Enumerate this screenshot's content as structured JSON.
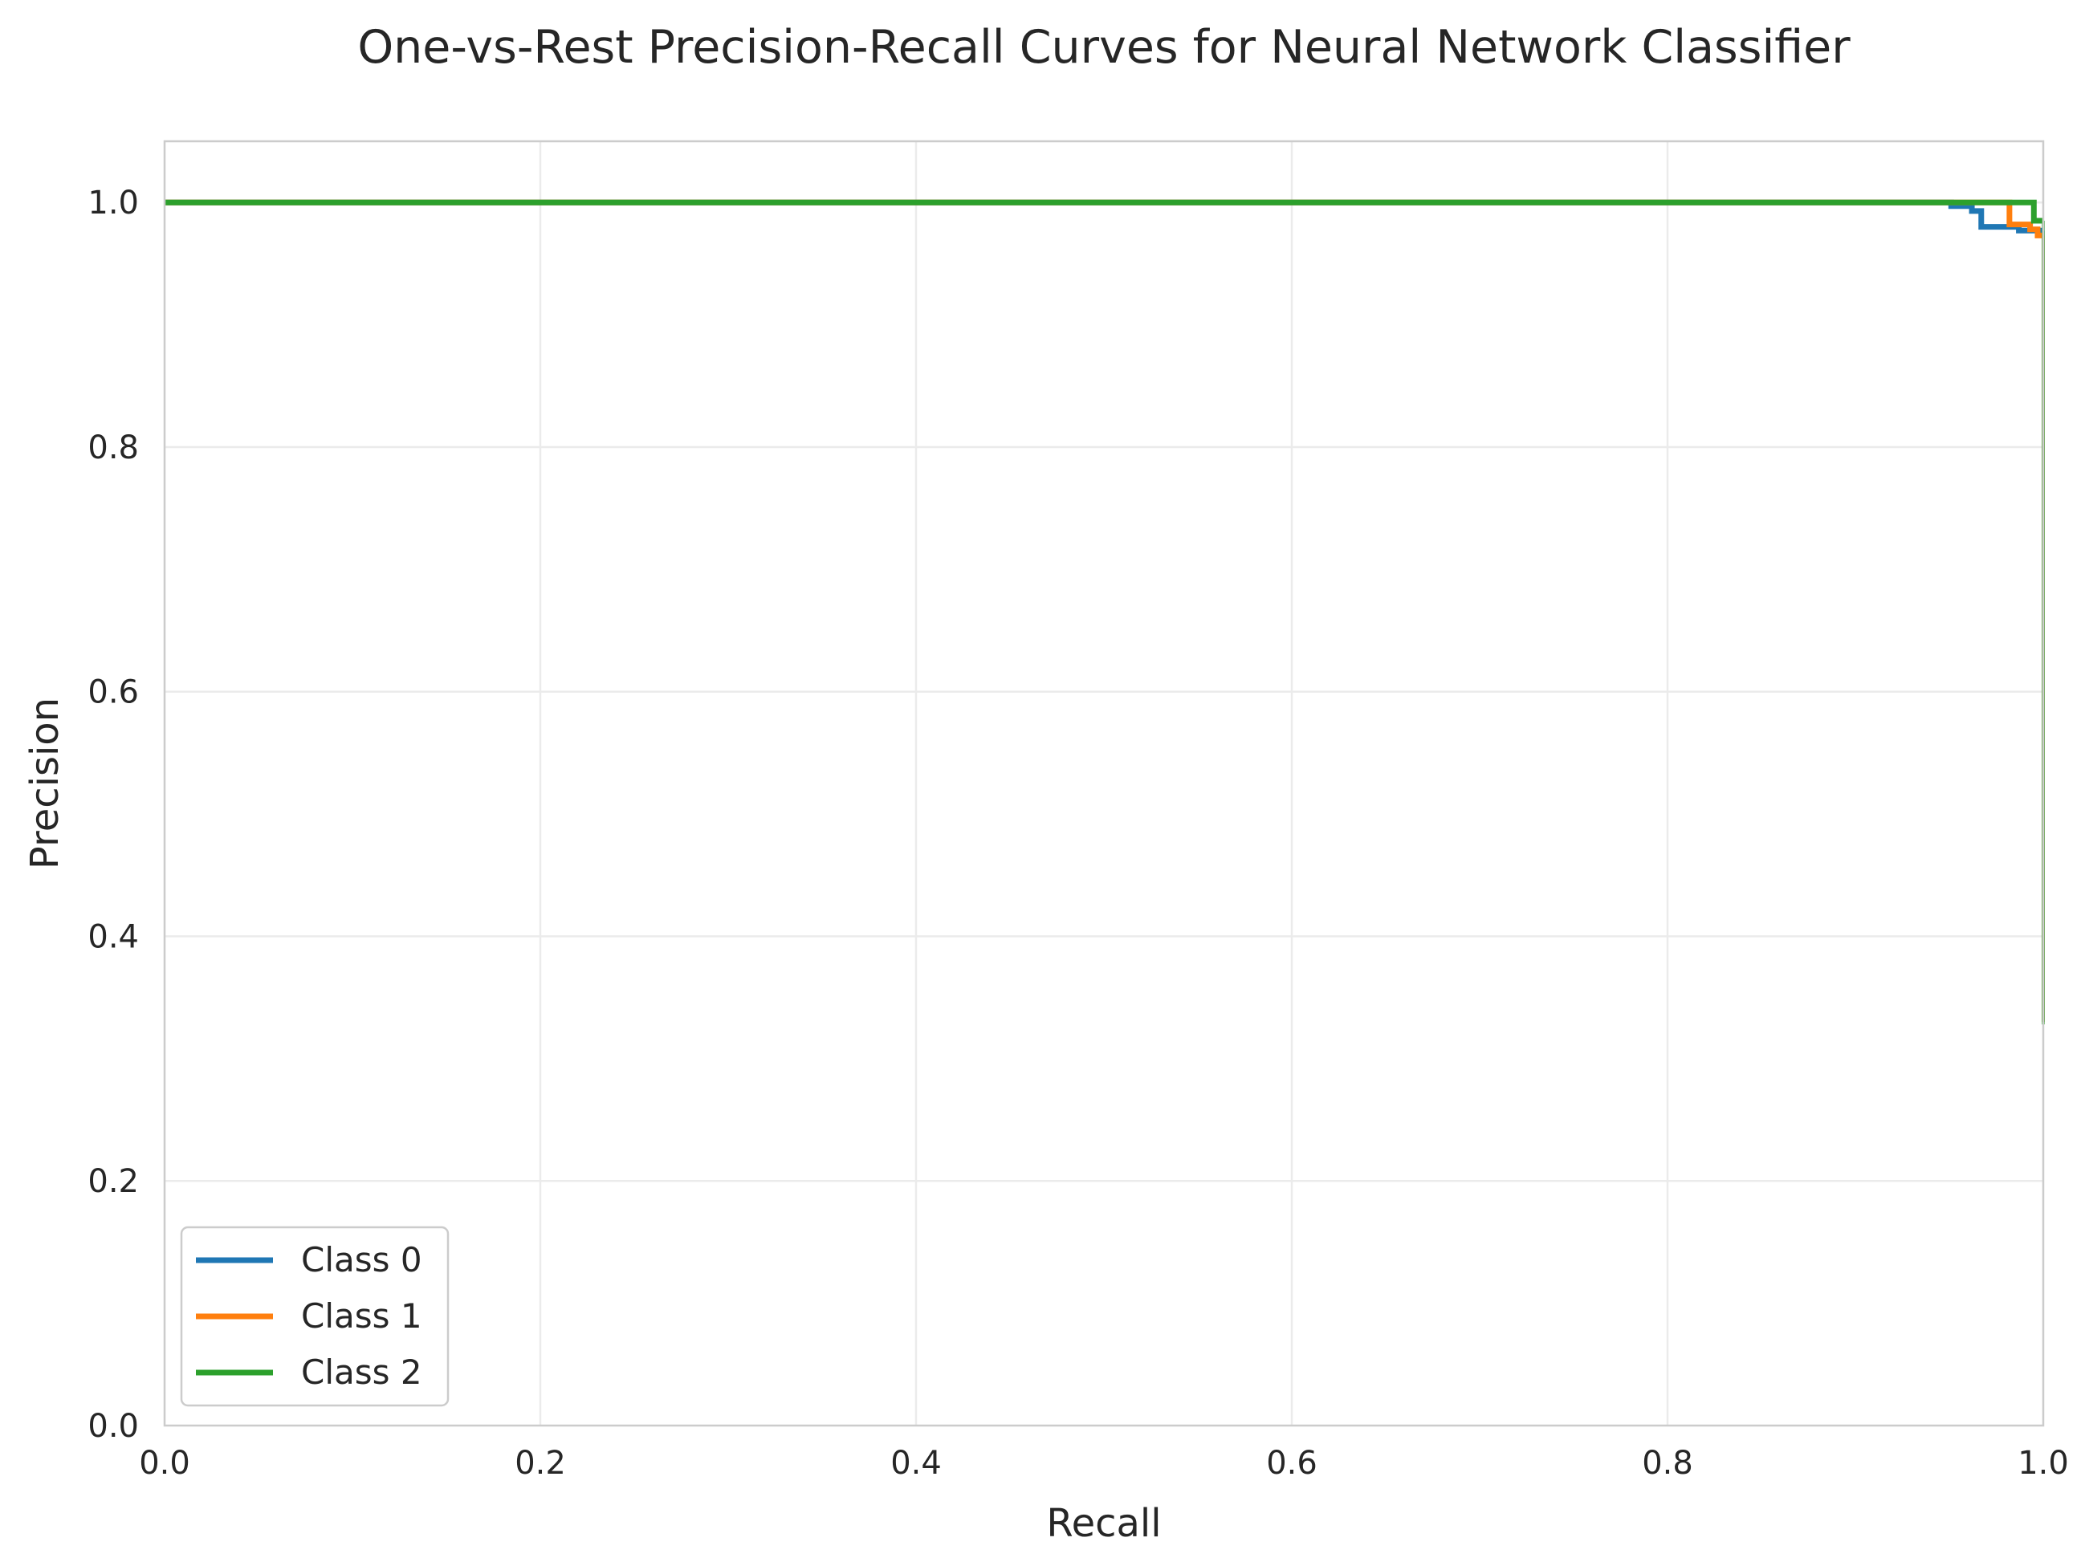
{
  "chart_data": {
    "type": "line",
    "title": "One-vs-Rest Precision-Recall Curves for Neural Network Classifier",
    "xlabel": "Recall",
    "ylabel": "Precision",
    "xlim": [
      0.0,
      1.0
    ],
    "ylim": [
      0.0,
      1.05
    ],
    "xticks": [
      0.0,
      0.2,
      0.4,
      0.6,
      0.8,
      1.0
    ],
    "yticks": [
      0.0,
      0.2,
      0.4,
      0.6,
      0.8,
      1.0
    ],
    "xtick_labels": [
      "0.0",
      "0.2",
      "0.4",
      "0.6",
      "0.8",
      "1.0"
    ],
    "ytick_labels": [
      "0.0",
      "0.2",
      "0.4",
      "0.6",
      "0.8",
      "1.0"
    ],
    "grid": true,
    "legend_position": "lower-left",
    "series": [
      {
        "name": "Class 0",
        "color": "#1f77b4",
        "x": [
          0.0,
          0.951,
          0.951,
          0.962,
          0.962,
          0.967,
          0.967,
          0.987,
          0.987,
          1.0,
          1.0
        ],
        "y": [
          1.0,
          1.0,
          0.997,
          0.997,
          0.993,
          0.993,
          0.98,
          0.98,
          0.977,
          0.977,
          0.33
        ]
      },
      {
        "name": "Class 1",
        "color": "#ff7f0e",
        "x": [
          0.0,
          0.982,
          0.982,
          0.993,
          0.993,
          0.997,
          0.997,
          1.0,
          1.0
        ],
        "y": [
          1.0,
          1.0,
          0.982,
          0.982,
          0.978,
          0.978,
          0.973,
          0.973,
          0.33
        ]
      },
      {
        "name": "Class 2",
        "color": "#2ca02c",
        "x": [
          0.0,
          0.995,
          0.995,
          1.0,
          1.0
        ],
        "y": [
          1.0,
          1.0,
          0.985,
          0.985,
          0.328
        ]
      }
    ]
  }
}
